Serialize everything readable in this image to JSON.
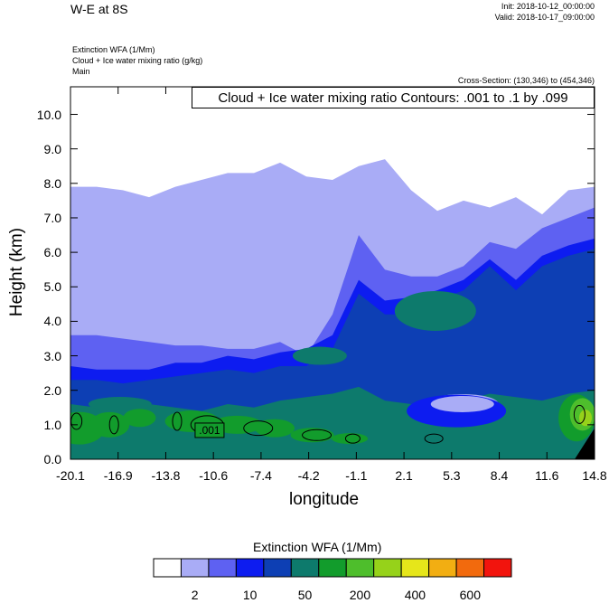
{
  "header": {
    "title": "W-E at 8S",
    "init": "Init: 2018-10-12_00:00:00",
    "valid": "Valid: 2018-10-17_09:00:00",
    "field1": "Extinction WFA   (1/Mm)",
    "field2": "Cloud + Ice water mixing ratio   (g/kg)",
    "field3": "Main",
    "cross_section": "Cross-Section: (130,346) to (454,346)",
    "contour_info": "Cloud + Ice water mixing ratio Contours: .001 to .1 by .099"
  },
  "colors": {
    "levels": [
      "#ffffff",
      "#a9acf6",
      "#5e61f2",
      "#0d1cf0",
      "#0d3fb4",
      "#0d7a6c",
      "#129c2c",
      "#4ebe2c",
      "#96d21a",
      "#e6e61a",
      "#f2ae12",
      "#f26a0d",
      "#f2140d"
    ]
  },
  "chart_data": {
    "type": "heatmap",
    "title": "W-E at 8S",
    "xlabel": "longitude",
    "ylabel": "Height (km)",
    "x_ticks": [
      "-20.1",
      "-16.9",
      "-13.8",
      "-10.6",
      "-7.4",
      "-4.2",
      "-1.1",
      "2.1",
      "5.3",
      "8.4",
      "11.6",
      "14.8"
    ],
    "y_ticks": [
      "0.0",
      "1.0",
      "2.0",
      "3.0",
      "4.0",
      "5.0",
      "6.0",
      "7.0",
      "8.0",
      "9.0",
      "10.0"
    ],
    "xlim": [
      -20.1,
      14.8
    ],
    "ylim": [
      0.0,
      10.8
    ],
    "colorbar": {
      "title": "Extinction WFA  (1/Mm)",
      "shown_labels": [
        "2",
        "10",
        "50",
        "200",
        "400",
        "600"
      ],
      "n_colors": 13
    },
    "contour_label": ".001",
    "layers": [
      {
        "level": 1,
        "top_km": [
          7.9,
          7.9,
          7.8,
          7.6,
          7.9,
          8.1,
          8.3,
          8.3,
          8.6,
          8.2,
          8.1,
          8.5,
          8.7,
          7.8,
          7.2,
          7.5,
          7.3,
          7.6,
          7.1,
          7.8,
          7.9
        ]
      },
      {
        "level": 2,
        "top_km": [
          3.6,
          3.6,
          3.5,
          3.4,
          3.3,
          3.3,
          3.2,
          3.2,
          3.4,
          3.0,
          4.2,
          6.5,
          5.5,
          5.3,
          5.3,
          5.6,
          6.3,
          6.1,
          6.7,
          7.0,
          7.3
        ]
      },
      {
        "level": 3,
        "top_km": [
          2.7,
          2.6,
          2.6,
          2.6,
          2.8,
          2.8,
          3.0,
          2.9,
          3.1,
          3.2,
          3.6,
          5.2,
          4.6,
          4.7,
          4.9,
          5.2,
          5.8,
          5.2,
          5.9,
          6.2,
          6.4
        ]
      },
      {
        "level": 4,
        "top_km": [
          2.3,
          2.3,
          2.2,
          2.3,
          2.4,
          2.5,
          2.6,
          2.5,
          2.7,
          2.7,
          3.2,
          4.8,
          4.2,
          4.2,
          4.6,
          4.9,
          5.6,
          4.9,
          5.6,
          5.9,
          6.1
        ]
      },
      {
        "level": 5,
        "top_km": [
          1.6,
          1.5,
          1.7,
          1.6,
          1.5,
          1.4,
          1.6,
          1.5,
          1.7,
          1.8,
          1.9,
          2.1,
          1.7,
          1.6,
          1.8,
          1.7,
          1.9,
          1.8,
          1.7,
          1.9,
          2.0
        ]
      }
    ]
  }
}
